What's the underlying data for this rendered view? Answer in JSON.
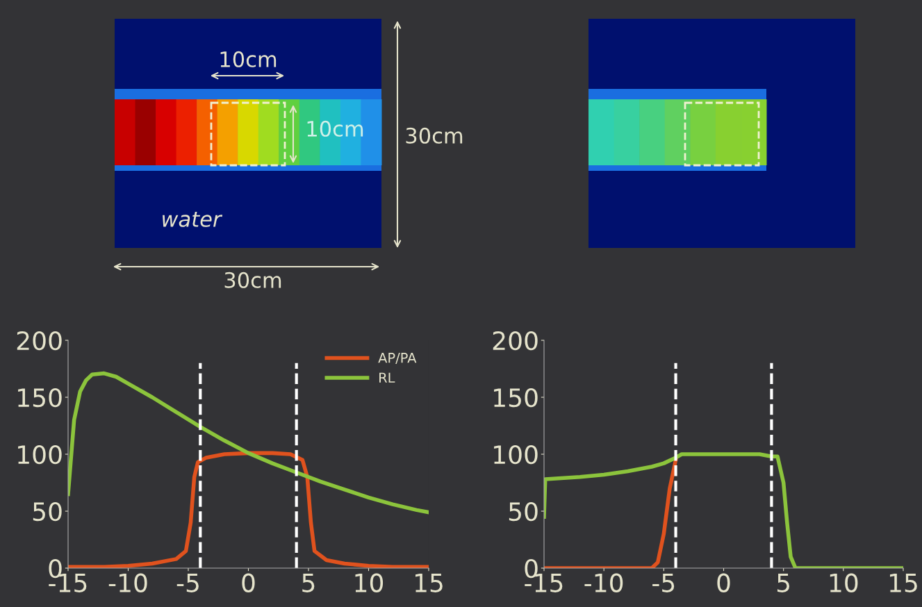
{
  "chart_data": [
    {
      "type": "line",
      "xlim": [
        -15,
        15
      ],
      "xticks": [
        -15,
        -10,
        -5,
        0,
        5,
        10,
        15
      ],
      "ylim": [
        0,
        200
      ],
      "yticks": [
        0,
        50,
        100,
        150,
        200
      ],
      "grid": false,
      "legend": "top right",
      "marker": "none",
      "line_style": "solid",
      "annotations": [
        "10cm",
        "10cm",
        "30cm",
        "30cm",
        "water"
      ],
      "ref_lines": [
        {
          "axis": "x",
          "value": -4,
          "color": "#ffffff",
          "line_style": "dashed"
        },
        {
          "axis": "x",
          "value": 4,
          "color": "#ffffff",
          "line_style": "dashed"
        }
      ],
      "series": [
        {
          "name": "AP/PA",
          "color": "#e0521e",
          "x": [
            -15,
            -12,
            -10,
            -8,
            -6,
            -5.2,
            -4.8,
            -4.5,
            -4.2,
            -3.5,
            -2,
            0,
            2,
            3.5,
            4.5,
            4.9,
            5.2,
            5.5,
            6.5,
            8,
            10,
            12,
            15
          ],
          "values": [
            1,
            1,
            2,
            4,
            8,
            15,
            40,
            80,
            93,
            97,
            100,
            101,
            101,
            100,
            95,
            80,
            40,
            15,
            7,
            4,
            2,
            1,
            1
          ]
        },
        {
          "name": "RL",
          "color": "#8cc43c",
          "x": [
            -15,
            -14.5,
            -14,
            -13.5,
            -13,
            -12,
            -11,
            -10,
            -8,
            -6,
            -4,
            -2,
            0,
            2,
            4,
            6,
            8,
            10,
            12,
            14,
            15
          ],
          "values": [
            65,
            130,
            155,
            165,
            170,
            171,
            168,
            162,
            150,
            137,
            124,
            112,
            101,
            92,
            84,
            76,
            69,
            62,
            56,
            51,
            49
          ]
        }
      ]
    },
    {
      "type": "line",
      "xlim": [
        -15,
        15
      ],
      "xticks": [
        -15,
        -10,
        -5,
        0,
        5,
        10,
        15
      ],
      "ylim": [
        0,
        200
      ],
      "yticks": [
        0,
        50,
        100,
        150,
        200
      ],
      "grid": false,
      "legend": false,
      "marker": "none",
      "line_style": "solid",
      "ref_lines": [
        {
          "axis": "x",
          "value": -4,
          "color": "#ffffff",
          "line_style": "dashed"
        },
        {
          "axis": "x",
          "value": 4,
          "color": "#ffffff",
          "line_style": "dashed"
        }
      ],
      "series": [
        {
          "color": "#e0521e",
          "x": [
            -15,
            -6,
            -5.5,
            -5,
            -4.5,
            -4
          ],
          "values": [
            0,
            0,
            5,
            30,
            70,
            95
          ]
        },
        {
          "color": "#8cc43c",
          "x": [
            -15,
            -14.9,
            -12,
            -10,
            -8,
            -6,
            -5,
            -4,
            -3.5,
            0,
            3,
            4,
            4.5,
            5,
            5.3,
            5.6,
            6,
            10,
            15
          ],
          "values": [
            45,
            78,
            80,
            82,
            85,
            89,
            92,
            97,
            100,
            100,
            100,
            98,
            98,
            75,
            40,
            10,
            0,
            0,
            0
          ]
        }
      ]
    }
  ]
}
